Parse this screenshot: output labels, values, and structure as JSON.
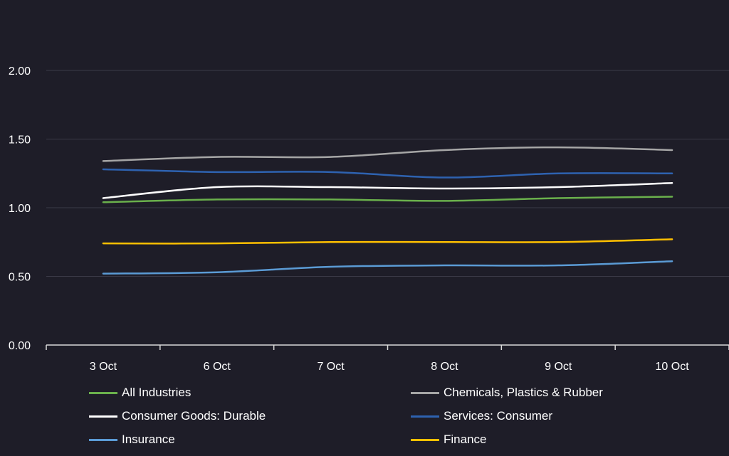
{
  "chart_data": {
    "type": "line",
    "title": "",
    "xlabel": "",
    "ylabel": "",
    "categories": [
      "3 Oct",
      "6 Oct",
      "7 Oct",
      "8 Oct",
      "9 Oct",
      "10 Oct"
    ],
    "ylim": [
      0,
      2.0
    ],
    "yticks": [
      "0.00",
      "0.50",
      "1.00",
      "1.50",
      "2.00"
    ],
    "ytick_values": [
      0,
      0.5,
      1.0,
      1.5,
      2.0
    ],
    "grid": true,
    "legend_position": "bottom",
    "series": [
      {
        "name": "All Industries",
        "color": "#6ab04c",
        "values": [
          1.04,
          1.06,
          1.06,
          1.05,
          1.07,
          1.08
        ]
      },
      {
        "name": "Chemicals, Plastics & Rubber",
        "color": "#a6a6a6",
        "values": [
          1.34,
          1.37,
          1.37,
          1.42,
          1.44,
          1.42
        ]
      },
      {
        "name": "Consumer Goods: Durable",
        "color": "#ffffff",
        "values": [
          1.07,
          1.15,
          1.15,
          1.14,
          1.15,
          1.18
        ]
      },
      {
        "name": "Services: Consumer",
        "color": "#2e62b0",
        "values": [
          1.28,
          1.26,
          1.26,
          1.22,
          1.25,
          1.25
        ]
      },
      {
        "name": "Insurance",
        "color": "#5b9bd5",
        "values": [
          0.52,
          0.53,
          0.57,
          0.58,
          0.58,
          0.61
        ]
      },
      {
        "name": "Finance",
        "color": "#ffc000",
        "values": [
          0.74,
          0.74,
          0.75,
          0.75,
          0.75,
          0.77
        ]
      }
    ]
  }
}
